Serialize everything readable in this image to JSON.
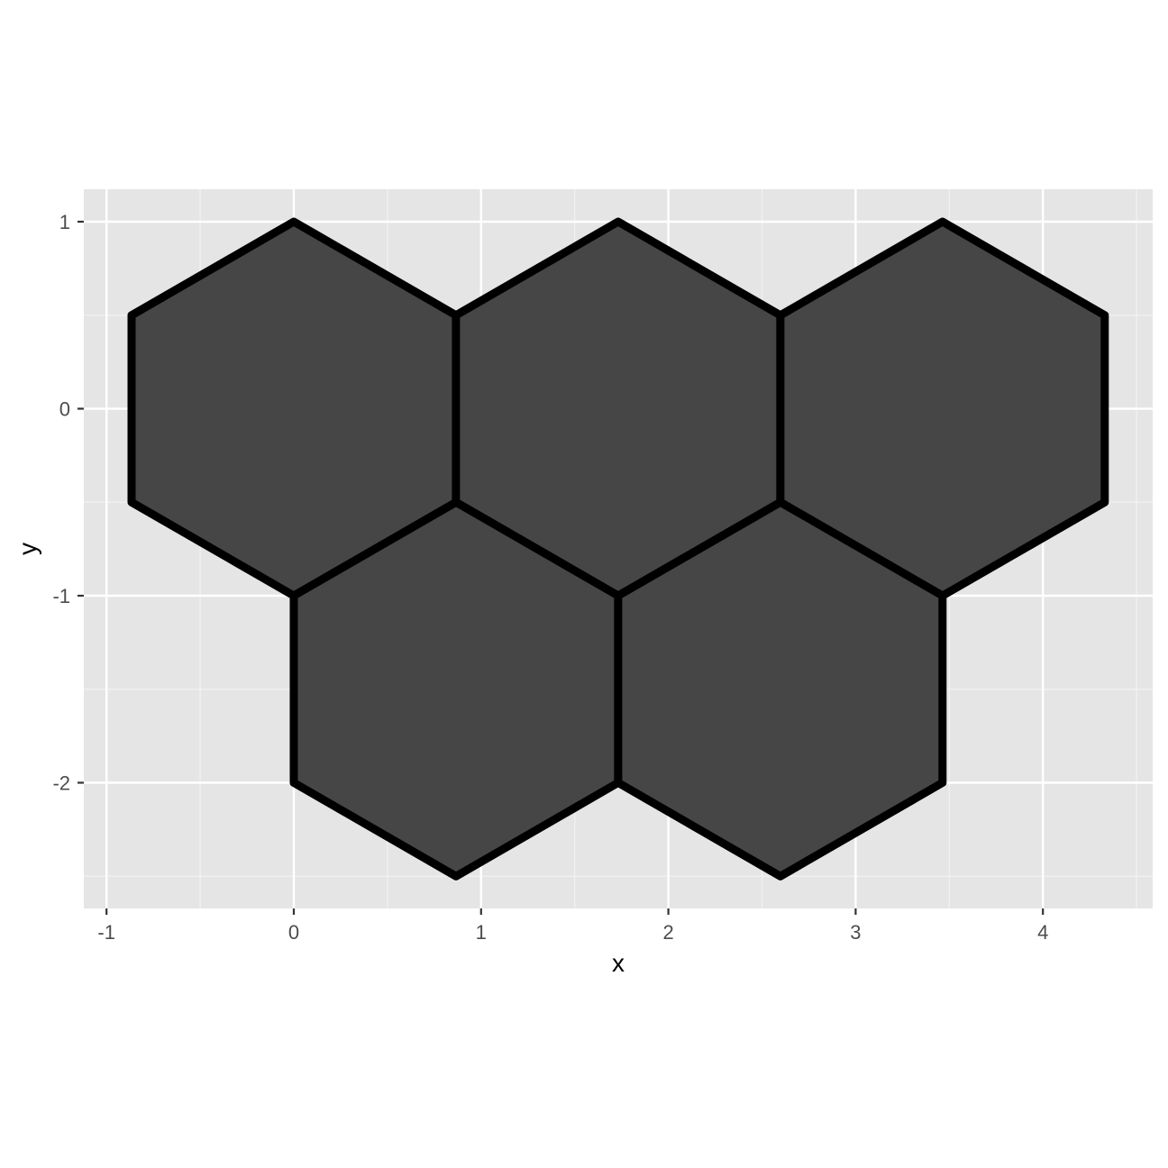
{
  "chart_data": {
    "type": "polygon",
    "title": "",
    "xlabel": "x",
    "ylabel": "y",
    "xlim": [
      -1.0,
      4.55
    ],
    "ylim": [
      -2.6,
      1.18
    ],
    "x_ticks": [
      -1,
      0,
      1,
      2,
      3,
      4
    ],
    "x_tick_labels": [
      "-1",
      "0",
      "1",
      "2",
      "3",
      "4"
    ],
    "y_ticks": [
      -2,
      -1,
      0,
      1
    ],
    "y_tick_labels": [
      "-2",
      "-1",
      "0",
      "1"
    ],
    "grid": true,
    "legend": "none",
    "colors": {
      "panel_background": "#e5e5e5",
      "grid_major": "#ffffff",
      "grid_minor": "#f2f2f2",
      "fill": "#464646",
      "stroke": "#000000",
      "tick_color": "#333333"
    },
    "hexagons": [
      {
        "cx": 0.0,
        "cy": 0.0,
        "radius": 1.0
      },
      {
        "cx": 1.732,
        "cy": 0.0,
        "radius": 1.0
      },
      {
        "cx": 3.464,
        "cy": 0.0,
        "radius": 1.0
      },
      {
        "cx": 0.866,
        "cy": -1.5,
        "radius": 1.0
      },
      {
        "cx": 2.598,
        "cy": -1.5,
        "radius": 1.0
      }
    ]
  }
}
